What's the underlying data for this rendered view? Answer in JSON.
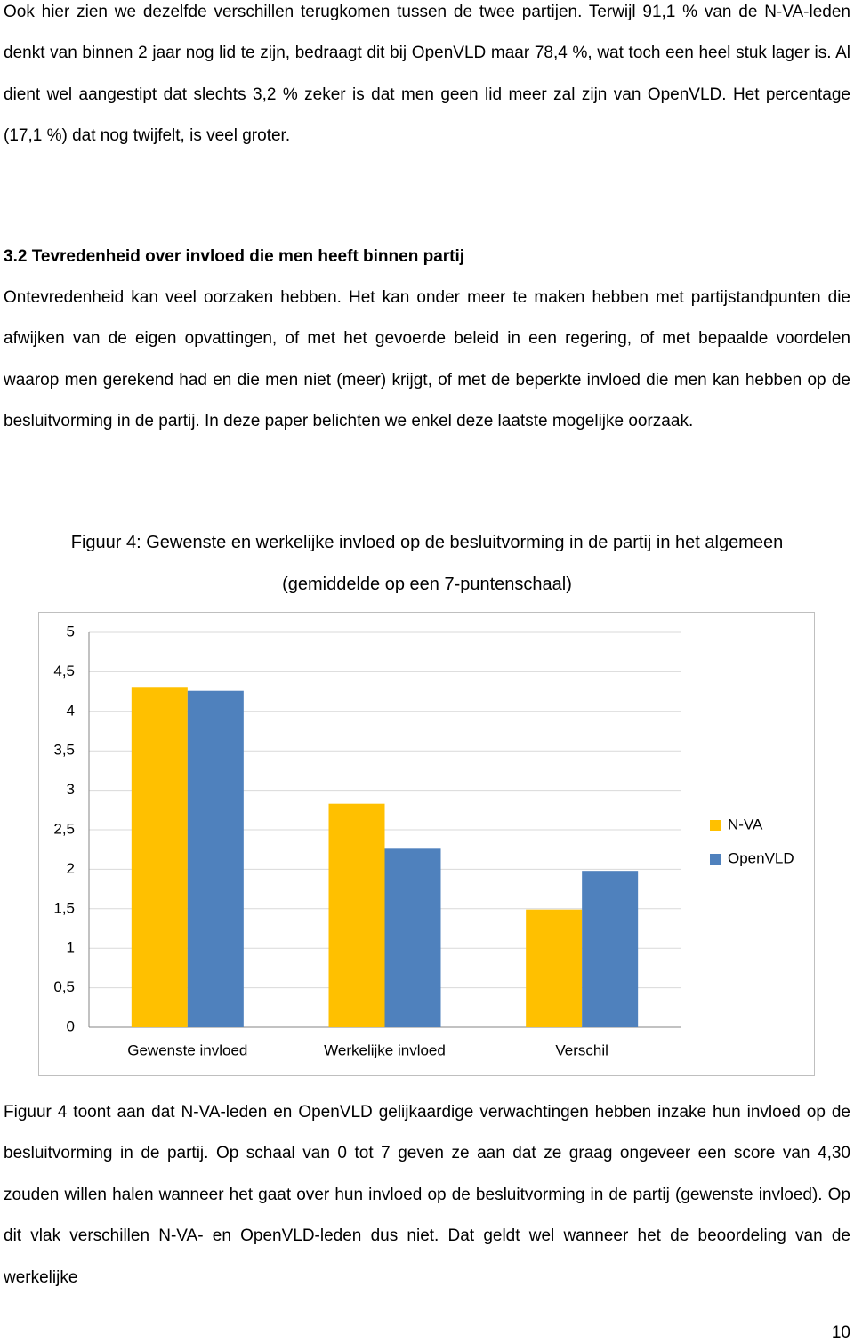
{
  "paragraph_1": "Ook hier zien we dezelfde verschillen terugkomen tussen de twee partijen. Terwijl 91,1 % van de N-VA-leden denkt van binnen 2 jaar nog lid te zijn, bedraagt dit bij OpenVLD maar 78,4 %, wat toch een heel stuk lager is. Al dient wel aangestipt dat slechts 3,2 % zeker is dat men geen lid meer zal zijn van OpenVLD. Het percentage (17,1 %) dat nog twijfelt, is veel groter.",
  "heading": "3.2 Tevredenheid over invloed die men heeft binnen partij",
  "paragraph_2": "Ontevredenheid kan veel oorzaken hebben. Het kan onder meer te maken hebben met partijstandpunten die afwijken van de eigen opvattingen, of met het gevoerde beleid in een regering, of met bepaalde voordelen waarop men gerekend had en die men niet (meer) krijgt, of met de beperkte invloed die men kan hebben op de besluitvorming in de partij. In deze paper belichten we enkel deze laatste mogelijke oorzaak.",
  "chart_data": {
    "type": "bar",
    "title": "Figuur 4: Gewenste en werkelijke invloed op de besluitvorming in de partij in het algemeen",
    "subtitle": "(gemiddelde op een 7-puntenschaal)",
    "categories": [
      "Gewenste invloed",
      "Werkelijke invloed",
      "Verschil"
    ],
    "series": [
      {
        "name": "N-VA",
        "color": "#ffc000",
        "values": [
          4.31,
          2.83,
          1.49
        ]
      },
      {
        "name": "OpenVLD",
        "color": "#4f81bd",
        "values": [
          4.26,
          2.26,
          1.98
        ]
      }
    ],
    "ylim": [
      0,
      5
    ],
    "yticks": [
      0,
      {
        "value": 0.5,
        "label": "0,5"
      },
      1,
      {
        "value": 1.5,
        "label": "1,5"
      },
      2,
      {
        "value": 2.5,
        "label": "2,5"
      },
      3,
      {
        "value": 3.5,
        "label": "3,5"
      },
      4,
      {
        "value": 4.5,
        "label": "4,5"
      },
      5
    ],
    "grid": true,
    "legend": "right"
  },
  "paragraph_3": "Figuur 4 toont aan dat N-VA-leden en OpenVLD gelijkaardige verwachtingen hebben inzake hun invloed op de besluitvorming in de partij. Op schaal van 0 tot 7 geven ze aan dat ze graag ongeveer een score van 4,30 zouden willen halen wanneer het gaat over hun invloed op de besluitvorming in de partij (gewenste invloed). Op dit vlak verschillen N-VA- en OpenVLD-leden dus niet. Dat geldt wel wanneer het de beoordeling van de werkelijke",
  "page_number": "10"
}
